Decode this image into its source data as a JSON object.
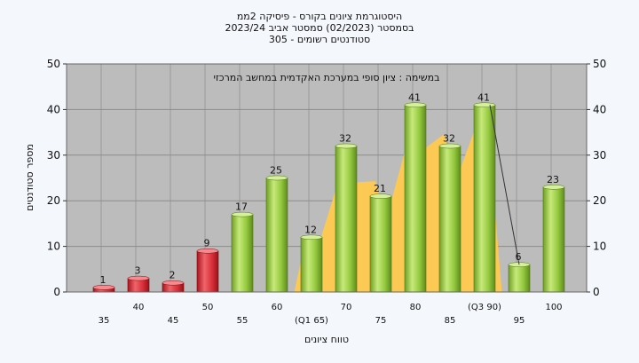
{
  "chart_data": {
    "type": "bar",
    "title_lines": [
      "היסטוגרמת ציונים בקורס - פיסיקה 2ממ",
      "בסמסטר  (02/2023)  סמסטר אביב 2023/24",
      "305 - סטודנטים רשומים"
    ],
    "annotation": "במשימה : ציון סופי במערכת האקדמית במחשב המרכזי",
    "xlabel": "טווח ציונים",
    "ylabel": "מספר סטודנטים",
    "ylim": [
      0,
      50
    ],
    "yticks": [
      0,
      10,
      20,
      30,
      40,
      50
    ],
    "grid": true,
    "categories": [
      "35",
      "40",
      "45",
      "50",
      "55",
      "60",
      "(Q1 65)",
      "70",
      "75",
      "80",
      "85",
      "(Q3 90)",
      "95",
      "100"
    ],
    "values": [
      1,
      3,
      2,
      9,
      17,
      25,
      12,
      32,
      21,
      41,
      32,
      41,
      6,
      23
    ],
    "fail_categories": [
      "35",
      "40",
      "45",
      "50"
    ],
    "colors": {
      "fail": "#d9303a",
      "pass": "#93c83e",
      "quartile_band": "#fcc954",
      "plot_bg": "#bcbcbc",
      "page_bg": "#f4f8fc"
    }
  }
}
